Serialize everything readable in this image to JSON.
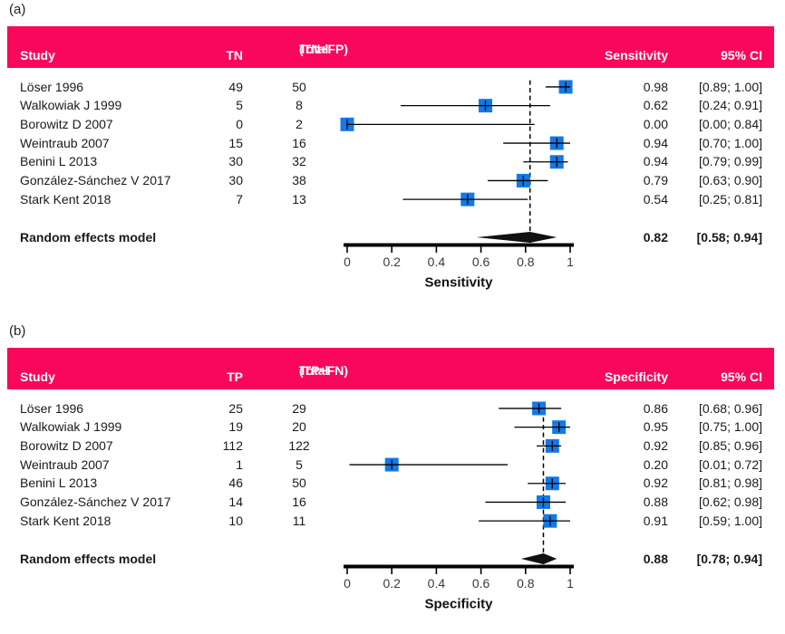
{
  "colors": {
    "header_bg": "#F9075C",
    "header_text": "#FFFFFF",
    "marker": "#1478E6",
    "line": "#000000"
  },
  "chart_data": [
    {
      "type": "forest",
      "panel_label": "(a)",
      "columns": {
        "study": "Study",
        "count": "TN",
        "total": [
          "Total",
          "(TN+FP)"
        ],
        "estimate": "Sensitivity",
        "ci": "95% CI"
      },
      "xlabel": "Sensitivity",
      "xlim": [
        0,
        1
      ],
      "xticks": [
        0,
        0.2,
        0.4,
        0.6,
        0.8,
        1
      ],
      "xtick_labels": [
        "0",
        "0.2",
        "0.4",
        "0.6",
        "0.8",
        "1"
      ],
      "ref_line": 0.82,
      "studies": [
        {
          "name": "Löser 1996",
          "count": "49",
          "total": "50",
          "est": 0.98,
          "lo": 0.89,
          "hi": 1.0,
          "est_text": "0.98",
          "ci_text": "[0.89; 1.00]"
        },
        {
          "name": "Walkowiak J 1999",
          "count": "5",
          "total": "8",
          "est": 0.62,
          "lo": 0.24,
          "hi": 0.91,
          "est_text": "0.62",
          "ci_text": "[0.24; 0.91]"
        },
        {
          "name": "Borowitz D 2007",
          "count": "0",
          "total": "2",
          "est": 0.0,
          "lo": 0.0,
          "hi": 0.84,
          "est_text": "0.00",
          "ci_text": "[0.00; 0.84]"
        },
        {
          "name": "Weintraub 2007",
          "count": "15",
          "total": "16",
          "est": 0.94,
          "lo": 0.7,
          "hi": 1.0,
          "est_text": "0.94",
          "ci_text": "[0.70; 1.00]"
        },
        {
          "name": "Benini L 2013",
          "count": "30",
          "total": "32",
          "est": 0.94,
          "lo": 0.79,
          "hi": 0.99,
          "est_text": "0.94",
          "ci_text": "[0.79; 0.99]"
        },
        {
          "name": "González-Sánchez V 2017",
          "count": "30",
          "total": "38",
          "est": 0.79,
          "lo": 0.63,
          "hi": 0.9,
          "est_text": "0.79",
          "ci_text": "[0.63; 0.90]"
        },
        {
          "name": "Stark Kent 2018",
          "count": "7",
          "total": "13",
          "est": 0.54,
          "lo": 0.25,
          "hi": 0.81,
          "est_text": "0.54",
          "ci_text": "[0.25; 0.81]"
        }
      ],
      "summary": {
        "name": "Random effects model",
        "est": 0.82,
        "lo": 0.58,
        "hi": 0.94,
        "est_text": "0.82",
        "ci_text": "[0.58; 0.94]"
      }
    },
    {
      "type": "forest",
      "panel_label": "(b)",
      "columns": {
        "study": "Study",
        "count": "TP",
        "total": [
          "Total",
          "(TP+FN)"
        ],
        "estimate": "Specificity",
        "ci": "95% CI"
      },
      "xlabel": "Specificity",
      "xlim": [
        0,
        1
      ],
      "xticks": [
        0,
        0.2,
        0.4,
        0.6,
        0.8,
        1
      ],
      "xtick_labels": [
        "0",
        "0.2",
        "0.4",
        "0.6",
        "0.8",
        "1"
      ],
      "ref_line": 0.88,
      "studies": [
        {
          "name": "Löser 1996",
          "count": "25",
          "total": "29",
          "est": 0.86,
          "lo": 0.68,
          "hi": 0.96,
          "est_text": "0.86",
          "ci_text": "[0.68; 0.96]"
        },
        {
          "name": "Walkowiak J 1999",
          "count": "19",
          "total": "20",
          "est": 0.95,
          "lo": 0.75,
          "hi": 1.0,
          "est_text": "0.95",
          "ci_text": "[0.75; 1.00]"
        },
        {
          "name": "Borowitz D 2007",
          "count": "112",
          "total": "122",
          "est": 0.92,
          "lo": 0.85,
          "hi": 0.96,
          "est_text": "0.92",
          "ci_text": "[0.85; 0.96]"
        },
        {
          "name": "Weintraub 2007",
          "count": "1",
          "total": "5",
          "est": 0.2,
          "lo": 0.01,
          "hi": 0.72,
          "est_text": "0.20",
          "ci_text": "[0.01; 0.72]"
        },
        {
          "name": "Benini L 2013",
          "count": "46",
          "total": "50",
          "est": 0.92,
          "lo": 0.81,
          "hi": 0.98,
          "est_text": "0.92",
          "ci_text": "[0.81; 0.98]"
        },
        {
          "name": "González-Sánchez V 2017",
          "count": "14",
          "total": "16",
          "est": 0.88,
          "lo": 0.62,
          "hi": 0.98,
          "est_text": "0.88",
          "ci_text": "[0.62; 0.98]"
        },
        {
          "name": "Stark Kent 2018",
          "count": "10",
          "total": "11",
          "est": 0.91,
          "lo": 0.59,
          "hi": 1.0,
          "est_text": "0.91",
          "ci_text": "[0.59; 1.00]"
        }
      ],
      "summary": {
        "name": "Random effects model",
        "est": 0.88,
        "lo": 0.78,
        "hi": 0.94,
        "est_text": "0.88",
        "ci_text": "[0.78; 0.94]"
      }
    }
  ]
}
